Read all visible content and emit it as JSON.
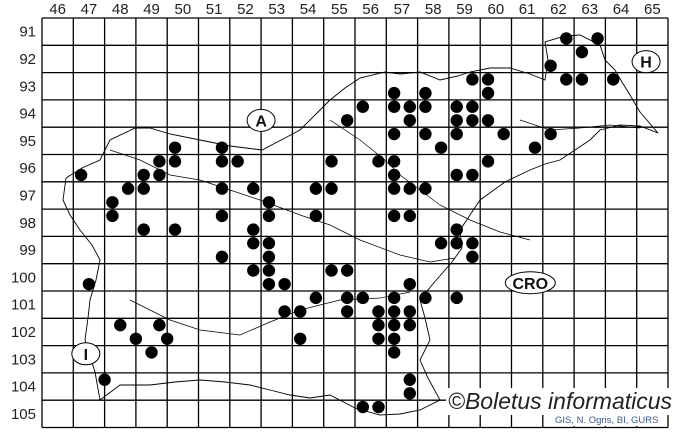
{
  "map": {
    "column_labels": [
      "46",
      "47",
      "48",
      "49",
      "50",
      "51",
      "52",
      "53",
      "54",
      "55",
      "56",
      "57",
      "58",
      "59",
      "60",
      "61",
      "62",
      "63",
      "64",
      "65"
    ],
    "row_labels": [
      "91",
      "92",
      "93",
      "94",
      "95",
      "96",
      "97",
      "98",
      "99",
      "100",
      "101",
      "102",
      "103",
      "104",
      "105"
    ],
    "country_labels": [
      {
        "text": "A",
        "col": 52.5,
        "row": 94.25
      },
      {
        "text": "H",
        "col": 64.8,
        "row": 92.1
      },
      {
        "text": "CRO",
        "col": 61.1,
        "row": 100.2
      },
      {
        "text": "I",
        "col": 46.9,
        "row": 102.8
      }
    ],
    "dot_color": "#000000",
    "records": [
      [
        62.25,
        91.25
      ],
      [
        63.25,
        91.25
      ],
      [
        62.75,
        91.75
      ],
      [
        61.75,
        92.25
      ],
      [
        62.25,
        92.75
      ],
      [
        62.75,
        92.75
      ],
      [
        63.75,
        92.75
      ],
      [
        59.25,
        92.75
      ],
      [
        59.75,
        92.75
      ],
      [
        59.75,
        93.25
      ],
      [
        56.75,
        93.25
      ],
      [
        57.75,
        93.25
      ],
      [
        55.75,
        93.75
      ],
      [
        56.75,
        93.75
      ],
      [
        57.25,
        93.75
      ],
      [
        57.75,
        93.75
      ],
      [
        58.75,
        93.75
      ],
      [
        59.25,
        93.75
      ],
      [
        55.25,
        94.25
      ],
      [
        57.25,
        94.25
      ],
      [
        58.75,
        94.25
      ],
      [
        59.25,
        94.25
      ],
      [
        59.75,
        94.25
      ],
      [
        56.75,
        94.75
      ],
      [
        57.75,
        94.75
      ],
      [
        58.75,
        94.75
      ],
      [
        60.25,
        94.75
      ],
      [
        61.75,
        94.75
      ],
      [
        58.25,
        95.25
      ],
      [
        61.25,
        95.25
      ],
      [
        56.25,
        95.75
      ],
      [
        56.75,
        95.75
      ],
      [
        59.75,
        95.75
      ],
      [
        56.75,
        96.25
      ],
      [
        58.75,
        96.25
      ],
      [
        59.25,
        96.25
      ],
      [
        56.75,
        96.75
      ],
      [
        57.25,
        96.75
      ],
      [
        57.75,
        96.75
      ],
      [
        56.75,
        97.75
      ],
      [
        57.25,
        97.75
      ],
      [
        49.75,
        95.25
      ],
      [
        51.25,
        95.25
      ],
      [
        49.25,
        95.75
      ],
      [
        49.75,
        95.75
      ],
      [
        51.25,
        95.75
      ],
      [
        51.75,
        95.75
      ],
      [
        54.75,
        95.75
      ],
      [
        46.75,
        96.25
      ],
      [
        48.75,
        96.25
      ],
      [
        49.25,
        96.25
      ],
      [
        48.25,
        96.75
      ],
      [
        48.75,
        96.75
      ],
      [
        51.25,
        96.75
      ],
      [
        52.25,
        96.75
      ],
      [
        54.25,
        96.75
      ],
      [
        54.75,
        96.75
      ],
      [
        47.75,
        97.25
      ],
      [
        52.75,
        97.25
      ],
      [
        47.75,
        97.75
      ],
      [
        51.25,
        97.75
      ],
      [
        52.75,
        97.75
      ],
      [
        54.25,
        97.75
      ],
      [
        48.75,
        98.25
      ],
      [
        49.75,
        98.25
      ],
      [
        52.25,
        98.25
      ],
      [
        52.25,
        98.75
      ],
      [
        52.75,
        98.75
      ],
      [
        51.25,
        99.25
      ],
      [
        52.75,
        99.25
      ],
      [
        52.25,
        99.75
      ],
      [
        52.75,
        99.75
      ],
      [
        54.75,
        99.75
      ],
      [
        47.0,
        100.25
      ],
      [
        52.75,
        100.25
      ],
      [
        53.25,
        100.25
      ],
      [
        54.25,
        100.75
      ],
      [
        53.25,
        101.25
      ],
      [
        53.75,
        101.25
      ],
      [
        48.0,
        101.75
      ],
      [
        49.25,
        101.75
      ],
      [
        48.5,
        102.25
      ],
      [
        49.5,
        102.25
      ],
      [
        53.75,
        102.25
      ],
      [
        49.0,
        102.75
      ],
      [
        47.5,
        103.75
      ],
      [
        58.75,
        98.25
      ],
      [
        58.25,
        98.75
      ],
      [
        58.75,
        98.75
      ],
      [
        59.25,
        98.75
      ],
      [
        59.25,
        99.25
      ],
      [
        55.25,
        99.75
      ],
      [
        57.25,
        100.25
      ],
      [
        55.25,
        100.75
      ],
      [
        55.75,
        100.75
      ],
      [
        56.75,
        100.75
      ],
      [
        57.75,
        100.75
      ],
      [
        58.75,
        100.75
      ],
      [
        55.25,
        101.25
      ],
      [
        56.25,
        101.25
      ],
      [
        56.75,
        101.25
      ],
      [
        57.25,
        101.25
      ],
      [
        56.25,
        101.75
      ],
      [
        56.75,
        101.75
      ],
      [
        57.25,
        101.75
      ],
      [
        56.25,
        102.25
      ],
      [
        56.75,
        102.25
      ],
      [
        56.75,
        102.75
      ],
      [
        57.25,
        103.75
      ],
      [
        57.25,
        104.25
      ],
      [
        55.75,
        104.75
      ],
      [
        56.25,
        104.75
      ]
    ]
  },
  "watermark": "©Boletus informaticus",
  "credit": "GIS, N. Ogris, BI, GURS"
}
